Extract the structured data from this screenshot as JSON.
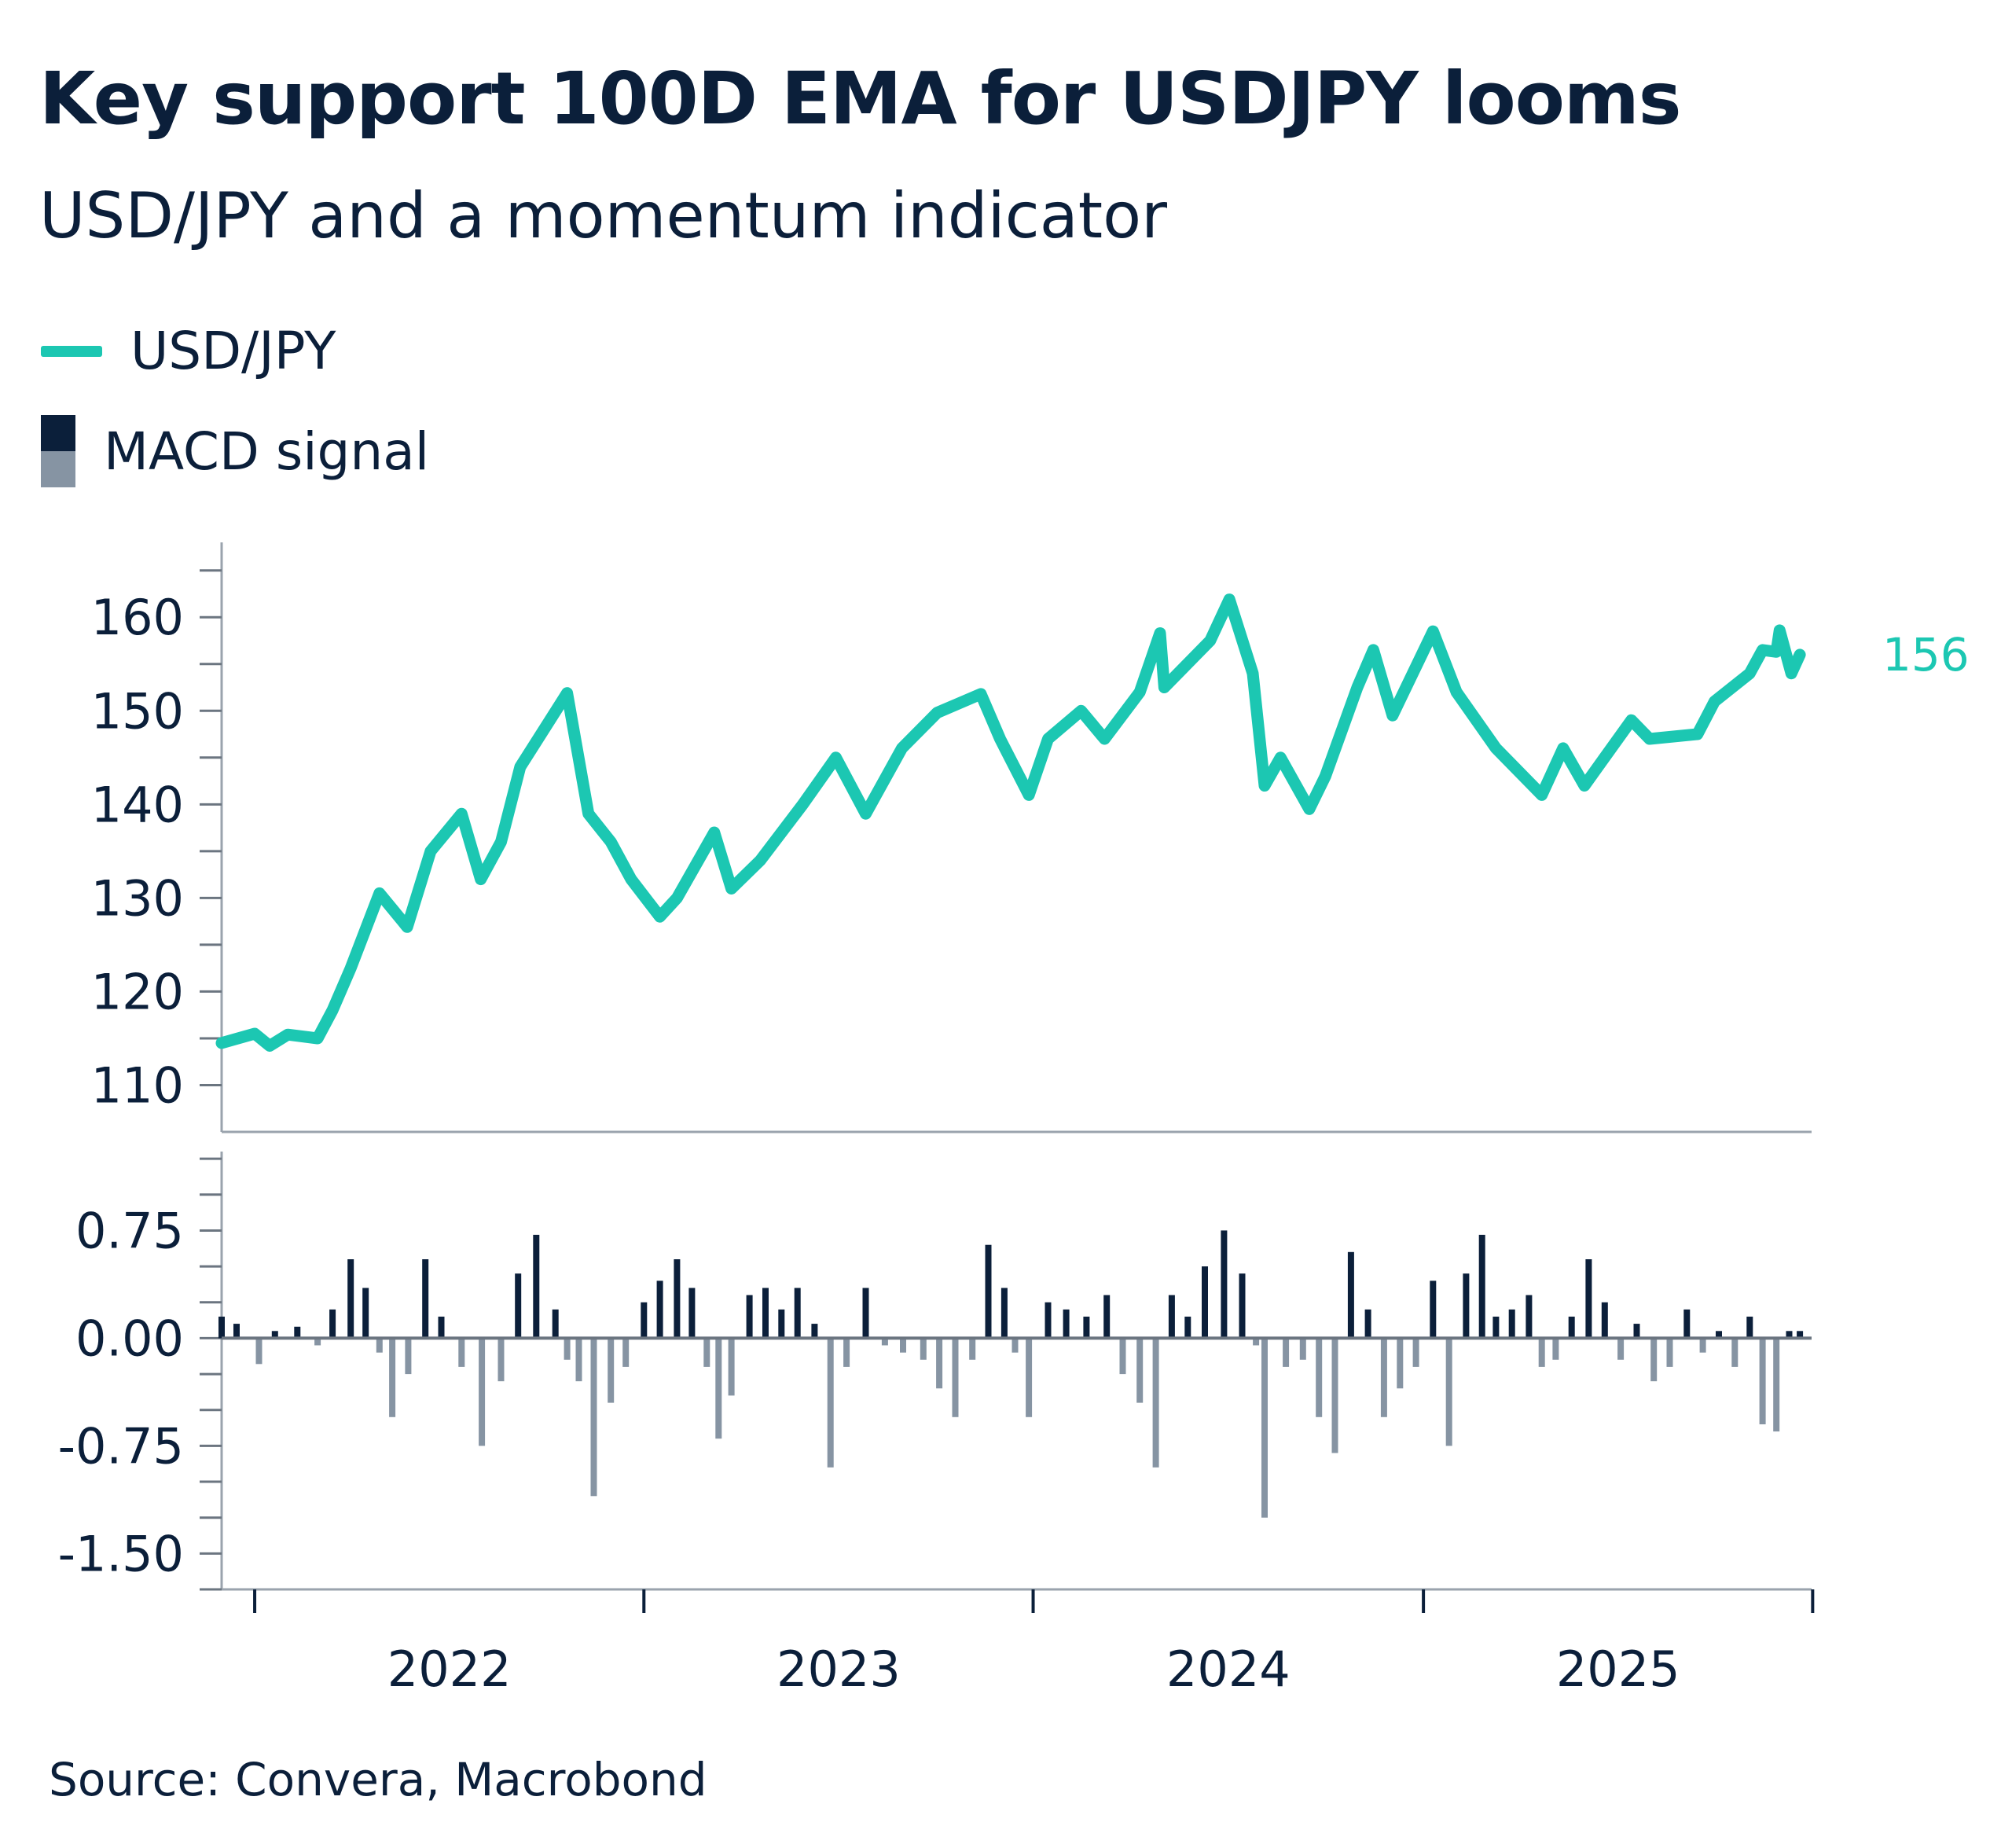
{
  "title": "Key support 100D EMA for USDJPY looms",
  "subtitle": "USD/JPY and a momentum indicator",
  "source": "Source: Convera, Macrobond",
  "colors": {
    "usdjpy": "#1cc7b2",
    "macd_positive": "#0b1f3a",
    "macd_negative": "#8694a3",
    "text": "#0b1f3a",
    "axis": "#9aa3ad"
  },
  "legend": [
    {
      "label": "USD/JPY",
      "style": "line"
    },
    {
      "label": "MACD signal",
      "style": "bars"
    }
  ],
  "chart_data": [
    {
      "type": "line",
      "series": [
        {
          "name": "USD/JPY",
          "x": [
            "2021-12-01",
            "2022-01-01",
            "2022-01-15",
            "2022-02-01",
            "2022-03-01",
            "2022-03-15",
            "2022-04-01",
            "2022-04-28",
            "2022-05-24",
            "2022-06-15",
            "2022-07-14",
            "2022-08-01",
            "2022-08-20",
            "2022-09-07",
            "2022-10-21",
            "2022-11-10",
            "2022-12-01",
            "2022-12-20",
            "2023-01-16",
            "2023-02-01",
            "2023-03-08",
            "2023-03-24",
            "2023-04-20",
            "2023-05-30",
            "2023-06-30",
            "2023-07-28",
            "2023-08-31",
            "2023-10-03",
            "2023-11-13",
            "2023-12-01",
            "2023-12-28",
            "2024-01-15",
            "2024-02-15",
            "2024-03-08",
            "2024-04-10",
            "2024-04-29",
            "2024-05-03",
            "2024-06-15",
            "2024-07-03",
            "2024-07-25",
            "2024-08-05",
            "2024-08-20",
            "2024-09-16",
            "2024-10-01",
            "2024-10-31",
            "2024-11-15",
            "2024-12-03",
            "2025-01-10",
            "2025-02-01",
            "2025-03-10",
            "2025-04-22",
            "2025-05-12",
            "2025-06-01",
            "2025-07-15",
            "2025-08-01",
            "2025-09-15",
            "2025-10-01",
            "2025-11-03",
            "2025-11-15",
            "2025-11-28",
            "2025-12-01",
            "2025-12-12",
            "2025-12-20"
          ],
          "values": [
            114.5,
            115.5,
            114.2,
            115.4,
            115.0,
            118.0,
            122.5,
            130.5,
            126.9,
            135.0,
            139.0,
            132.0,
            136.0,
            144.0,
            151.9,
            139.0,
            136.0,
            132.0,
            128.0,
            130.0,
            137.0,
            131.0,
            134.0,
            140.0,
            145.0,
            139.0,
            146.0,
            149.8,
            151.8,
            147.0,
            141.0,
            147.0,
            150.0,
            147.0,
            152.0,
            158.3,
            152.5,
            157.5,
            161.9,
            154.0,
            142.0,
            145.0,
            139.5,
            143.0,
            152.5,
            156.5,
            149.5,
            158.5,
            152.0,
            146.0,
            141.0,
            146.0,
            142.0,
            149.0,
            147.0,
            147.5,
            151.0,
            154.0,
            156.5,
            156.3,
            158.6,
            154.0,
            156.0
          ],
          "end_label": "156"
        }
      ],
      "ylim": [
        105,
        168
      ],
      "yticks": [
        "110",
        "120",
        "130",
        "140",
        "150",
        "160"
      ],
      "xlim": [
        "2021-12-01",
        "2025-12-31"
      ]
    },
    {
      "type": "bar",
      "series": [
        {
          "name": "MACD signal",
          "x": [
            "2021-12-01",
            "2021-12-15",
            "2022-01-05",
            "2022-01-20",
            "2022-02-10",
            "2022-03-01",
            "2022-03-15",
            "2022-04-01",
            "2022-04-15",
            "2022-04-28",
            "2022-05-10",
            "2022-05-25",
            "2022-06-10",
            "2022-06-25",
            "2022-07-14",
            "2022-08-02",
            "2022-08-20",
            "2022-09-05",
            "2022-09-22",
            "2022-10-10",
            "2022-10-21",
            "2022-11-01",
            "2022-11-15",
            "2022-12-01",
            "2022-12-15",
            "2023-01-01",
            "2023-01-16",
            "2023-02-01",
            "2023-02-15",
            "2023-03-01",
            "2023-03-12",
            "2023-03-24",
            "2023-04-10",
            "2023-04-25",
            "2023-05-10",
            "2023-05-25",
            "2023-06-10",
            "2023-06-25",
            "2023-07-10",
            "2023-07-28",
            "2023-08-15",
            "2023-09-01",
            "2023-09-20",
            "2023-10-05",
            "2023-10-20",
            "2023-11-05",
            "2023-11-20",
            "2023-12-05",
            "2023-12-15",
            "2023-12-28",
            "2024-01-15",
            "2024-02-01",
            "2024-02-20",
            "2024-03-10",
            "2024-03-25",
            "2024-04-10",
            "2024-04-25",
            "2024-05-10",
            "2024-05-25",
            "2024-06-10",
            "2024-06-28",
            "2024-07-15",
            "2024-07-28",
            "2024-08-05",
            "2024-08-25",
            "2024-09-10",
            "2024-09-25",
            "2024-10-10",
            "2024-10-25",
            "2024-11-10",
            "2024-11-25",
            "2024-12-10",
            "2024-12-25",
            "2025-01-10",
            "2025-01-25",
            "2025-02-10",
            "2025-02-25",
            "2025-03-10",
            "2025-03-25",
            "2025-04-10",
            "2025-04-22",
            "2025-05-05",
            "2025-05-20",
            "2025-06-05",
            "2025-06-20",
            "2025-07-05",
            "2025-07-20",
            "2025-08-05",
            "2025-08-20",
            "2025-09-05",
            "2025-09-20",
            "2025-10-05",
            "2025-10-20",
            "2025-11-03",
            "2025-11-15",
            "2025-11-28",
            "2025-12-10",
            "2025-12-20"
          ],
          "values": [
            0.15,
            0.1,
            -0.18,
            0.05,
            0.08,
            -0.05,
            0.2,
            0.55,
            0.35,
            -0.1,
            -0.55,
            -0.25,
            0.55,
            0.15,
            -0.2,
            -0.75,
            -0.3,
            0.45,
            0.72,
            0.2,
            -0.15,
            -0.3,
            -1.1,
            -0.45,
            -0.2,
            0.25,
            0.4,
            0.55,
            0.35,
            -0.2,
            -0.7,
            -0.4,
            0.3,
            0.35,
            0.2,
            0.35,
            0.1,
            -0.9,
            -0.2,
            0.35,
            -0.05,
            -0.1,
            -0.15,
            -0.35,
            -0.55,
            -0.15,
            0.65,
            0.35,
            -0.1,
            -0.55,
            0.25,
            0.2,
            0.15,
            0.3,
            -0.25,
            -0.45,
            -0.9,
            0.3,
            0.15,
            0.5,
            0.75,
            0.45,
            -0.05,
            -1.25,
            -0.2,
            -0.15,
            -0.55,
            -0.8,
            0.6,
            0.2,
            -0.55,
            -0.35,
            -0.2,
            0.4,
            -0.75,
            0.45,
            0.72,
            0.15,
            0.2,
            0.3,
            -0.2,
            -0.15,
            0.15,
            0.55,
            0.25,
            -0.15,
            0.1,
            -0.3,
            -0.2,
            0.2,
            -0.1,
            0.05,
            -0.2,
            0.15,
            -0.6,
            -0.65,
            0.05,
            0.05
          ],
          "sign_colors": true
        }
      ],
      "ylim": [
        -1.75,
        1.3
      ],
      "yticks": [
        "0.75",
        "0.00",
        "-0.75",
        "-1.50"
      ],
      "zero_line": true
    }
  ],
  "x_axis": {
    "tick_labels": [
      "2022",
      "2023",
      "2024",
      "2025"
    ]
  }
}
